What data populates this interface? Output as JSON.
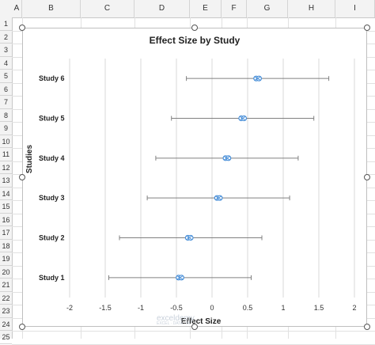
{
  "sheet": {
    "columns": [
      "A",
      "B",
      "C",
      "D",
      "E",
      "F",
      "G",
      "H",
      "I"
    ],
    "rows": [
      "1",
      "2",
      "3",
      "4",
      "5",
      "6",
      "7",
      "8",
      "9",
      "10",
      "11",
      "12",
      "13",
      "14",
      "15",
      "16",
      "17",
      "18",
      "19",
      "20",
      "21",
      "22",
      "23",
      "24",
      "25"
    ]
  },
  "chart_data": {
    "type": "scatter",
    "title": "Effect Size by Study",
    "xlabel": "Effect Size",
    "ylabel": "Studies",
    "xlim": [
      -2,
      2
    ],
    "xticks": [
      "-2",
      "-1.5",
      "-1",
      "-0.5",
      "0",
      "0.5",
      "1",
      "1.5",
      "2"
    ],
    "xtick_values": [
      -2,
      -1.5,
      -1,
      -0.5,
      0,
      0.5,
      1,
      1.5,
      2
    ],
    "categories": [
      "Study 1",
      "Study 2",
      "Study 3",
      "Study 4",
      "Study 5",
      "Study 6"
    ],
    "values": [
      -0.45,
      -0.32,
      0.09,
      0.21,
      0.43,
      0.64
    ],
    "lower": [
      -1.45,
      -1.3,
      -0.91,
      -0.79,
      -0.57,
      -0.36
    ],
    "upper": [
      0.55,
      0.7,
      1.09,
      1.21,
      1.43,
      1.64
    ],
    "grid": "vertical",
    "legend": "none",
    "marker_color": "#4a90d9",
    "errorbar_color": "#808080"
  },
  "watermark": {
    "text": "exceldemy",
    "sub": "EXCEL · DATA · BI"
  }
}
